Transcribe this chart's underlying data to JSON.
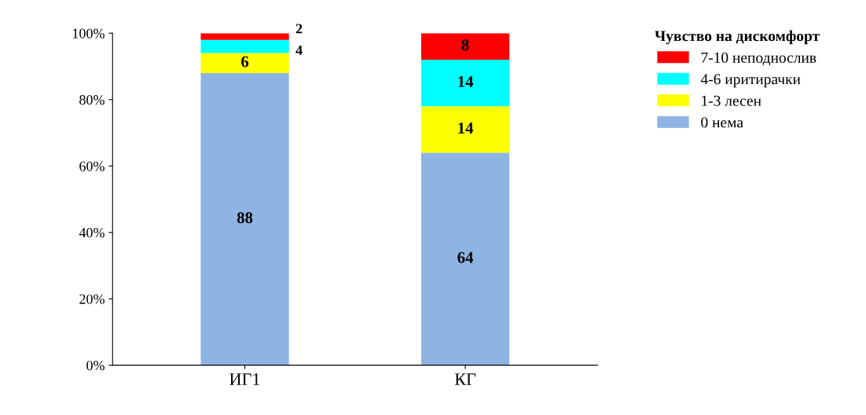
{
  "chart_data": {
    "type": "bar",
    "stacked": true,
    "categories": [
      "ИГ1",
      "КГ"
    ],
    "series": [
      {
        "name": "0 нема",
        "color": "#8eb4e3",
        "values": [
          88,
          64
        ]
      },
      {
        "name": "1-3 лесен",
        "color": "#ffff00",
        "values": [
          6,
          14
        ]
      },
      {
        "name": "4-6 иритирачки",
        "color": "#00ffff",
        "values": [
          4,
          14
        ]
      },
      {
        "name": "7-10 неподнослив",
        "color": "#ff0000",
        "values": [
          2,
          8
        ]
      }
    ],
    "legend_title": "Чувство на дискомфорт",
    "legend": "top right",
    "data_labels": true,
    "grid": false,
    "ylim": [
      0,
      100
    ],
    "yticks": [
      {
        "value": 0,
        "label": "0%"
      },
      {
        "value": 20,
        "label": "20%"
      },
      {
        "value": 40,
        "label": "40%"
      },
      {
        "value": 60,
        "label": "60%"
      },
      {
        "value": 80,
        "label": "80%"
      },
      {
        "value": 100,
        "label": "100%"
      }
    ]
  }
}
